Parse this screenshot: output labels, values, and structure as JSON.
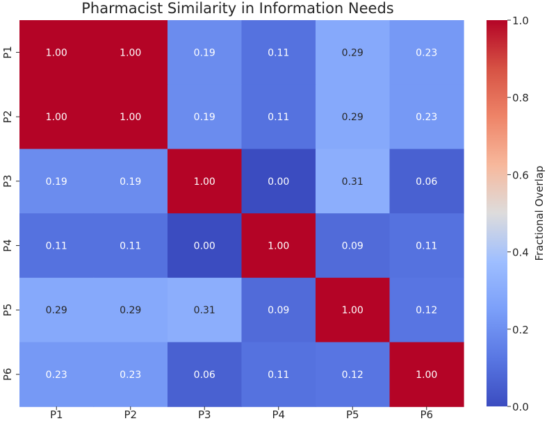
{
  "chart_data": {
    "type": "heatmap",
    "title": "Pharmacist Similarity in Information Needs",
    "row_labels": [
      "P1",
      "P2",
      "P3",
      "P4",
      "P5",
      "P6"
    ],
    "col_labels": [
      "P1",
      "P2",
      "P3",
      "P4",
      "P5",
      "P6"
    ],
    "values": [
      [
        1.0,
        1.0,
        0.19,
        0.11,
        0.29,
        0.23
      ],
      [
        1.0,
        1.0,
        0.19,
        0.11,
        0.29,
        0.23
      ],
      [
        0.19,
        0.19,
        1.0,
        0.0,
        0.31,
        0.06
      ],
      [
        0.11,
        0.11,
        0.0,
        1.0,
        0.09,
        0.11
      ],
      [
        0.29,
        0.29,
        0.31,
        0.09,
        1.0,
        0.12
      ],
      [
        0.23,
        0.23,
        0.06,
        0.11,
        0.12,
        1.0
      ]
    ],
    "colorbar": {
      "label": "Fractional Overlap",
      "range": [
        0.0,
        1.0
      ],
      "ticks": [
        0.0,
        0.2,
        0.4,
        0.6,
        0.8,
        1.0
      ],
      "tick_labels": [
        "0.0",
        "0.2",
        "0.4",
        "0.6",
        "0.8",
        "1.0"
      ],
      "colormap": "coolwarm"
    }
  }
}
